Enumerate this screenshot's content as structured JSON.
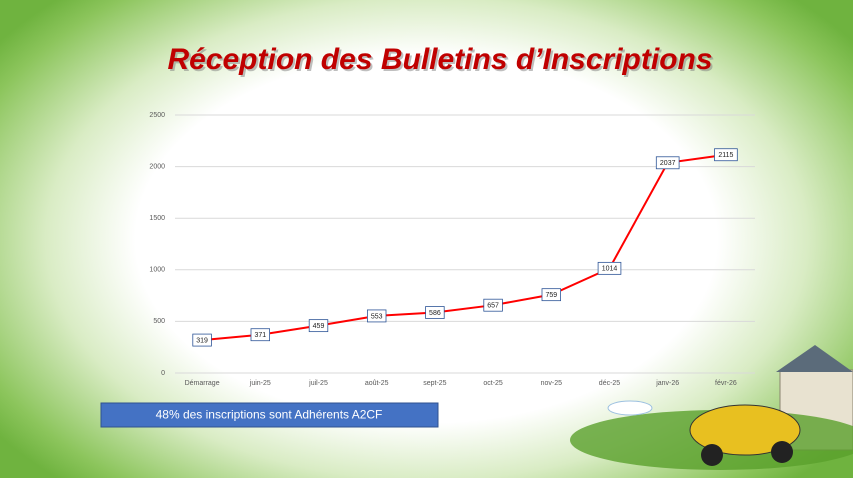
{
  "chart_data": {
    "type": "line",
    "title": "Réception des Bulletins d’Inscriptions",
    "annotation": "48%  des inscriptions sont Adhérents A2CF",
    "categories": [
      "Démarrage",
      "juin-25",
      "juil-25",
      "août-25",
      "sept-25",
      "oct-25",
      "nov-25",
      "déc-25",
      "janv-26",
      "févr-26"
    ],
    "values": [
      319,
      371,
      459,
      553,
      586,
      657,
      759,
      1014,
      2037,
      2115
    ],
    "color": "#ff0000",
    "ylim": [
      0,
      2500
    ],
    "yticks": [
      0,
      500,
      1000,
      1500,
      2000,
      2500
    ],
    "grid": true
  }
}
